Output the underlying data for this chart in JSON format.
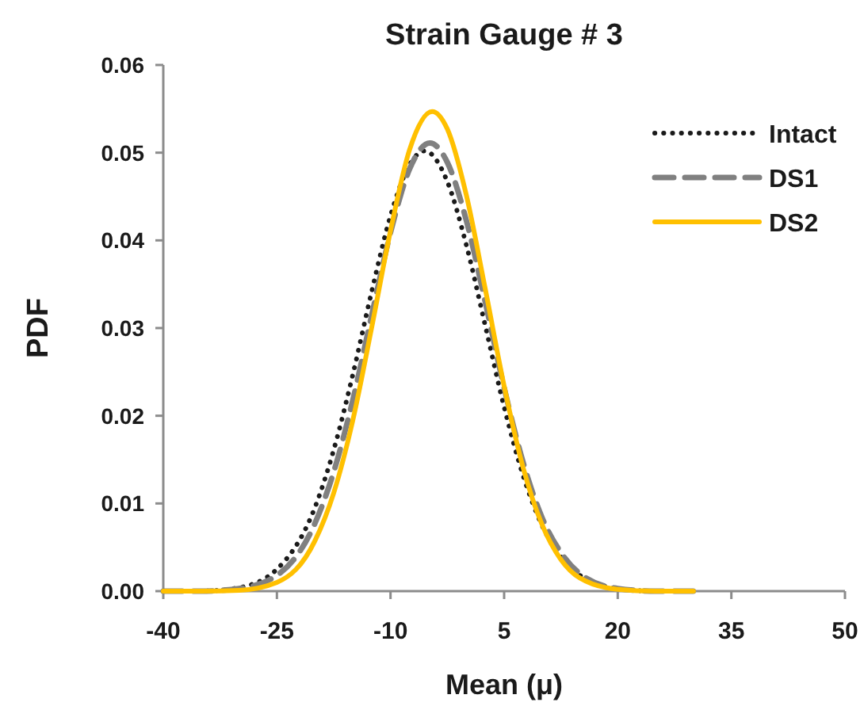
{
  "chart_data": {
    "type": "line",
    "title": "Strain Gauge # 3",
    "xlabel": "Mean (μ)",
    "ylabel": "PDF",
    "xlim": [
      -40,
      50
    ],
    "xticks": [
      -40,
      -25,
      -10,
      5,
      20,
      35,
      50
    ],
    "ylim": [
      0,
      0.06
    ],
    "yticks": [
      {
        "value": 0,
        "label": "0.00"
      },
      {
        "value": 0.01,
        "label": "0.01"
      },
      {
        "value": 0.02,
        "label": "0.02"
      },
      {
        "value": 0.03,
        "label": "0.03"
      },
      {
        "value": 0.04,
        "label": "0.04"
      },
      {
        "value": 0.05,
        "label": "0.05"
      },
      {
        "value": 0.06,
        "label": "0.06"
      }
    ],
    "grid": false,
    "legend": "top right",
    "marker": "none",
    "series": [
      {
        "name": "Intact",
        "color": "#1a1a1a",
        "line_style": "dotted",
        "x": [
          -40,
          -35,
          -30,
          -25,
          -20,
          -17.5,
          -15,
          -12.5,
          -10,
          -7.5,
          -5.5,
          -2.5,
          0,
          2.5,
          5,
          7.5,
          10,
          12.5,
          15,
          20,
          25,
          30
        ],
        "values": [
          0,
          0,
          0.0004,
          0.0025,
          0.0095,
          0.0161,
          0.0246,
          0.0341,
          0.0428,
          0.0486,
          0.0502,
          0.0467,
          0.0395,
          0.0303,
          0.021,
          0.0132,
          0.0075,
          0.0039,
          0.0018,
          0.0003,
          0,
          0
        ]
      },
      {
        "name": "DS1",
        "color": "#808080",
        "line_style": "dashed",
        "x": [
          -40,
          -35,
          -30,
          -25,
          -20,
          -17.5,
          -15,
          -12.5,
          -10,
          -7.5,
          -4.8,
          -2.5,
          0,
          2.5,
          5,
          7.5,
          10,
          12.5,
          15,
          20,
          25,
          30
        ],
        "values": [
          0,
          0,
          0.0003,
          0.0018,
          0.0077,
          0.0136,
          0.0217,
          0.0314,
          0.0409,
          0.0481,
          0.0511,
          0.0489,
          0.0423,
          0.033,
          0.0232,
          0.0147,
          0.0084,
          0.0044,
          0.002,
          0.0003,
          0,
          0
        ]
      },
      {
        "name": "DS2",
        "color": "#ffc000",
        "line_style": "solid",
        "x": [
          -40,
          -35,
          -30,
          -25,
          -20,
          -17.5,
          -15,
          -12.5,
          -10,
          -7.5,
          -4.5,
          -2.5,
          0,
          2.5,
          5,
          7.5,
          10,
          12.5,
          15,
          20,
          25,
          30
        ],
        "values": [
          0,
          0,
          0.0001,
          0.001,
          0.0057,
          0.0112,
          0.0194,
          0.03,
          0.0411,
          0.0503,
          0.0547,
          0.0527,
          0.0452,
          0.0345,
          0.0234,
          0.0141,
          0.0076,
          0.0036,
          0.0015,
          0.0002,
          0,
          0
        ]
      }
    ]
  }
}
